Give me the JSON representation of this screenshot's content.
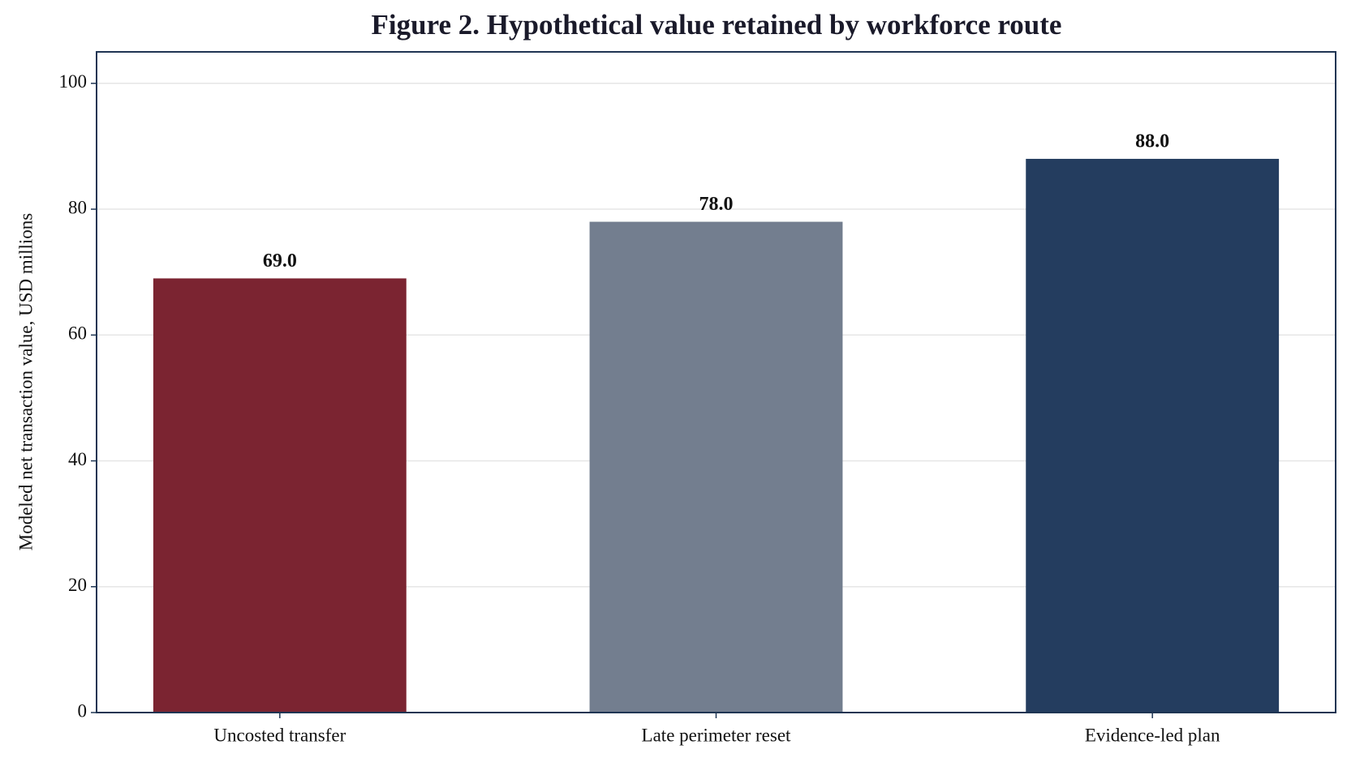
{
  "chart_data": {
    "type": "bar",
    "title": "Figure 2. Hypothetical value retained by workforce route",
    "y_label": "Modeled net transaction value, USD millions",
    "categories": [
      "Uncosted transfer",
      "Late perimeter reset",
      "Evidence-led plan"
    ],
    "values": [
      69,
      78,
      88
    ],
    "value_labels": [
      "69.0",
      "78.0",
      "88.0"
    ],
    "colors": [
      "#7b2431",
      "#737e8f",
      "#243d5f"
    ],
    "ylim": [
      0,
      105
    ],
    "yticks": [
      0,
      20,
      40,
      60,
      80,
      100
    ],
    "grid": true
  }
}
